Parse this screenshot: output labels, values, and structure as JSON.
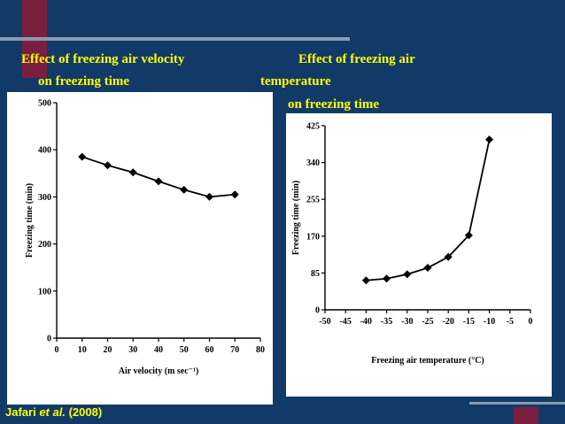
{
  "slide": {
    "left_title_line1": "Effect of freezing air velocity",
    "left_title_line2": "on freezing time",
    "right_title_line1": "Effect of freezing air",
    "right_title_line2": "temperature",
    "right_title_line3": "on freezing time",
    "citation_author": "Jafari",
    "citation_etal": "et al.",
    "citation_year": "(2008)"
  },
  "chart_data": [
    {
      "type": "line",
      "title": "Effect of freezing air velocity on freezing time",
      "xlabel": "Air velocity (m sec⁻¹)",
      "ylabel": "Freezing time (min)",
      "xlim": [
        0,
        80
      ],
      "ylim": [
        0,
        500
      ],
      "x_ticks": [
        0,
        10,
        20,
        30,
        40,
        50,
        60,
        70,
        80
      ],
      "y_ticks": [
        0,
        100,
        200,
        300,
        400,
        500
      ],
      "x": [
        10,
        20,
        30,
        40,
        50,
        60,
        70
      ],
      "values": [
        385,
        367,
        352,
        333,
        315,
        300,
        305
      ],
      "marker": "diamond",
      "grid": false,
      "color": "#000000"
    },
    {
      "type": "line",
      "title": "Effect of freezing air temperature on freezing time",
      "xlabel": "Freezing air temperature (°C)",
      "ylabel": "Freezing time (min)",
      "xlim": [
        -50,
        0
      ],
      "ylim": [
        0,
        425
      ],
      "x_ticks": [
        -50,
        -45,
        -40,
        -35,
        -30,
        -25,
        -20,
        -15,
        -10,
        -5,
        0
      ],
      "y_ticks": [
        0,
        85,
        170,
        255,
        340,
        425
      ],
      "x": [
        -40,
        -35,
        -30,
        -25,
        -20,
        -15,
        -10
      ],
      "values": [
        68,
        72,
        82,
        97,
        122,
        172,
        393
      ],
      "marker": "diamond",
      "grid": false,
      "color": "#000000"
    }
  ]
}
